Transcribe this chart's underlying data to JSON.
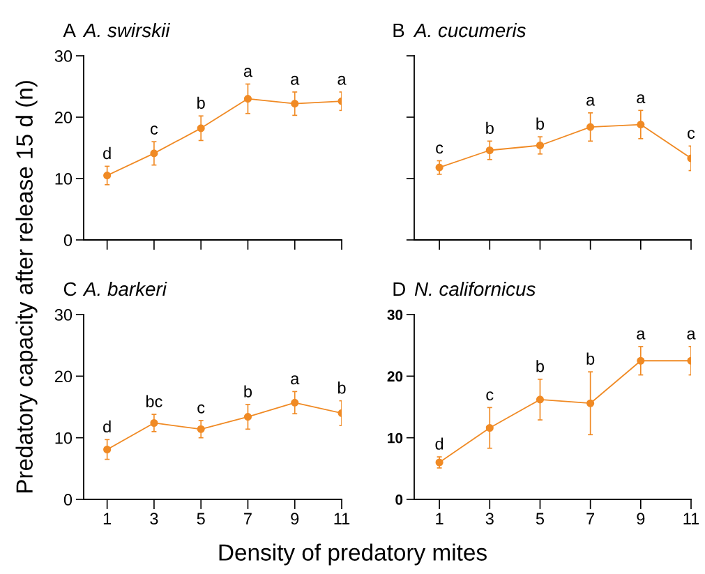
{
  "chart_data": [
    {
      "type": "line",
      "title": "A A. swirskii",
      "ylabel": "Predatory capacity after release 15 d (n)",
      "x": [
        1,
        3,
        5,
        7,
        9,
        11
      ],
      "xlim": [
        0,
        11
      ],
      "xticks": [
        1,
        3,
        5,
        7,
        9,
        11
      ],
      "ylim": [
        0,
        30
      ],
      "yticks": [
        0,
        10,
        20,
        30
      ],
      "tick_labels": "y",
      "marker": "circle",
      "grid": false,
      "series": [
        {
          "color": "#f08a24",
          "values": [
            10.5,
            14.1,
            18.2,
            23.0,
            22.2,
            22.6
          ],
          "errors": [
            1.5,
            1.9,
            2.0,
            2.4,
            1.9,
            1.5
          ]
        }
      ],
      "annotations": [
        {
          "text": "d",
          "x": 1,
          "y": 10.5
        },
        {
          "text": "c",
          "x": 3,
          "y": 14.1
        },
        {
          "text": "b",
          "x": 5,
          "y": 18.2
        },
        {
          "text": "a",
          "x": 7,
          "y": 23.0
        },
        {
          "text": "a",
          "x": 9,
          "y": 22.2
        },
        {
          "text": "a",
          "x": 11,
          "y": 22.6
        }
      ]
    },
    {
      "type": "line",
      "title": "B A. cucumeris",
      "x": [
        1,
        3,
        5,
        7,
        9,
        11
      ],
      "xlim": [
        0,
        11
      ],
      "xticks": [
        1,
        3,
        5,
        7,
        9,
        11
      ],
      "ylim": [
        0,
        30
      ],
      "yticks": [
        0,
        10,
        20,
        30
      ],
      "tick_labels": false,
      "marker": "circle",
      "grid": false,
      "series": [
        {
          "color": "#f08a24",
          "values": [
            11.8,
            14.6,
            15.4,
            18.4,
            18.8,
            13.3
          ],
          "errors": [
            1.1,
            1.5,
            1.4,
            2.3,
            2.3,
            2.0
          ]
        }
      ],
      "annotations": [
        {
          "text": "c",
          "x": 1,
          "y": 11.8
        },
        {
          "text": "b",
          "x": 3,
          "y": 14.6
        },
        {
          "text": "b",
          "x": 5,
          "y": 15.4
        },
        {
          "text": "a",
          "x": 7,
          "y": 18.4
        },
        {
          "text": "a",
          "x": 9,
          "y": 18.8
        },
        {
          "text": "c",
          "x": 11,
          "y": 13.3
        }
      ]
    },
    {
      "type": "line",
      "title": "C A. barkeri",
      "xlabel": "Density of predatory mites",
      "x": [
        1,
        3,
        5,
        7,
        9,
        11
      ],
      "xlim": [
        0,
        11
      ],
      "xticks": [
        1,
        3,
        5,
        7,
        9,
        11
      ],
      "ylim": [
        0,
        30
      ],
      "yticks": [
        0,
        10,
        20,
        30
      ],
      "marker": "circle",
      "grid": false,
      "series": [
        {
          "color": "#f08a24",
          "values": [
            8.1,
            12.4,
            11.4,
            13.4,
            15.7,
            14.0
          ],
          "errors": [
            1.6,
            1.4,
            1.4,
            2.0,
            1.8,
            2.0
          ]
        }
      ],
      "annotations": [
        {
          "text": "d",
          "x": 1,
          "y": 8.1
        },
        {
          "text": "bc",
          "x": 3,
          "y": 12.4
        },
        {
          "text": "c",
          "x": 5,
          "y": 11.4
        },
        {
          "text": "b",
          "x": 7,
          "y": 13.4
        },
        {
          "text": "a",
          "x": 9,
          "y": 15.7
        },
        {
          "text": "b",
          "x": 11,
          "y": 14.0
        }
      ]
    },
    {
      "type": "line",
      "title": "D N. californicus",
      "x": [
        1,
        3,
        5,
        7,
        9,
        11
      ],
      "xlim": [
        0,
        11
      ],
      "xticks": [
        1,
        3,
        5,
        7,
        9,
        11
      ],
      "ylim": [
        0,
        30
      ],
      "yticks": [
        0,
        10,
        20,
        30
      ],
      "marker": "circle",
      "grid": false,
      "series": [
        {
          "color": "#f08a24",
          "values": [
            6.0,
            11.6,
            16.2,
            15.6,
            22.5,
            22.5
          ],
          "errors": [
            0.9,
            3.3,
            3.3,
            5.1,
            2.3,
            2.3
          ]
        }
      ],
      "annotations": [
        {
          "text": "d",
          "x": 1,
          "y": 6.0
        },
        {
          "text": "c",
          "x": 3,
          "y": 11.6
        },
        {
          "text": "b",
          "x": 5,
          "y": 16.2
        },
        {
          "text": "b",
          "x": 7,
          "y": 15.6
        },
        {
          "text": "a",
          "x": 9,
          "y": 22.5
        },
        {
          "text": "a",
          "x": 11,
          "y": 22.5
        }
      ]
    }
  ]
}
